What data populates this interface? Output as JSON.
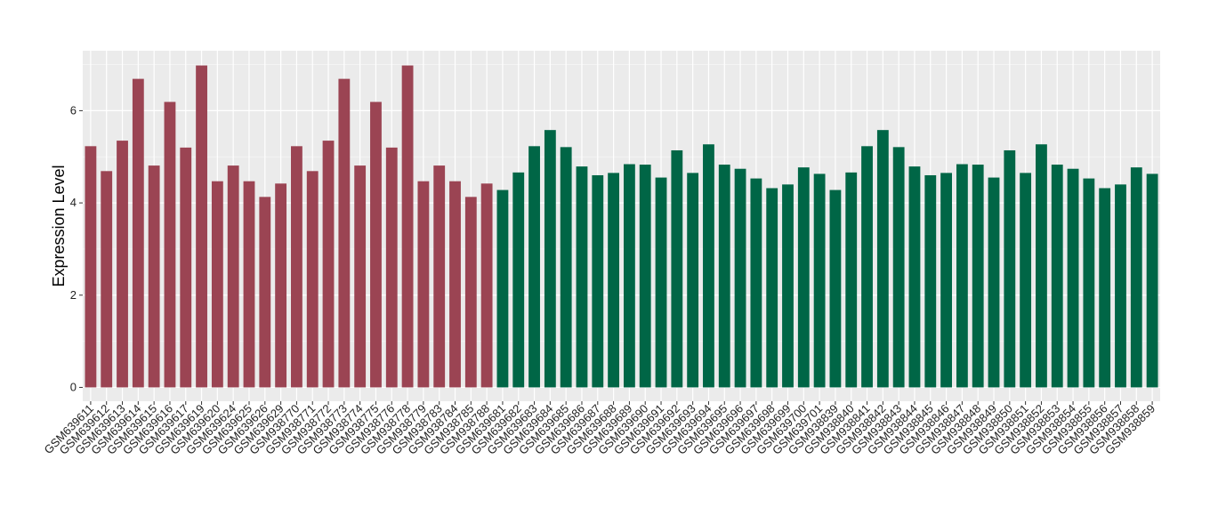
{
  "chart_data": {
    "type": "bar",
    "xlabel": "",
    "ylabel": "Expression Level",
    "ylim": [
      -0.3,
      7.3
    ],
    "yticks": [
      0,
      2,
      4,
      6
    ],
    "grid": true,
    "categories": [
      "GSM639611",
      "GSM639612",
      "GSM639613",
      "GSM639614",
      "GSM639615",
      "GSM639616",
      "GSM639617",
      "GSM639619",
      "GSM639620",
      "GSM639624",
      "GSM639625",
      "GSM639626",
      "GSM639629",
      "GSM938770",
      "GSM938771",
      "GSM938772",
      "GSM938773",
      "GSM938774",
      "GSM938775",
      "GSM938776",
      "GSM938778",
      "GSM938779",
      "GSM938783",
      "GSM938784",
      "GSM938785",
      "GSM938788",
      "GSM639681",
      "GSM639682",
      "GSM639683",
      "GSM639684",
      "GSM639685",
      "GSM639686",
      "GSM639687",
      "GSM639688",
      "GSM639689",
      "GSM639690",
      "GSM639691",
      "GSM639692",
      "GSM639693",
      "GSM639694",
      "GSM639695",
      "GSM639696",
      "GSM639697",
      "GSM639698",
      "GSM639699",
      "GSM639700",
      "GSM639701",
      "GSM938839",
      "GSM938840",
      "GSM938841",
      "GSM938842",
      "GSM938843",
      "GSM938844",
      "GSM938845",
      "GSM938846",
      "GSM938847",
      "GSM938848",
      "GSM938849",
      "GSM938850",
      "GSM938851",
      "GSM938852",
      "GSM938853",
      "GSM938854",
      "GSM938855",
      "GSM938856",
      "GSM938857",
      "GSM938858",
      "GSM938859"
    ],
    "values": [
      5.23,
      4.69,
      5.35,
      6.69,
      4.81,
      6.19,
      5.2,
      6.98,
      4.47,
      4.81,
      4.47,
      4.13,
      4.42,
      5.23,
      4.69,
      5.35,
      6.69,
      4.81,
      6.19,
      5.2,
      6.98,
      4.47,
      4.81,
      4.47,
      4.13,
      4.42,
      4.28,
      4.66,
      5.23,
      5.58,
      5.21,
      4.79,
      4.6,
      4.65,
      4.84,
      4.83,
      4.55,
      5.14,
      4.65,
      5.27,
      4.83,
      4.74,
      4.53,
      4.32,
      4.4,
      4.77,
      4.63,
      4.28,
      4.66,
      5.23,
      5.58,
      5.21,
      4.79,
      4.6,
      4.65,
      4.84,
      4.83,
      4.55,
      5.14,
      4.65,
      5.27,
      4.83,
      4.74,
      4.53,
      4.32,
      4.4,
      4.77,
      4.63
    ],
    "group_colors": {
      "first": "#9b4453",
      "second": "#006646"
    },
    "group_split_index": 26
  }
}
